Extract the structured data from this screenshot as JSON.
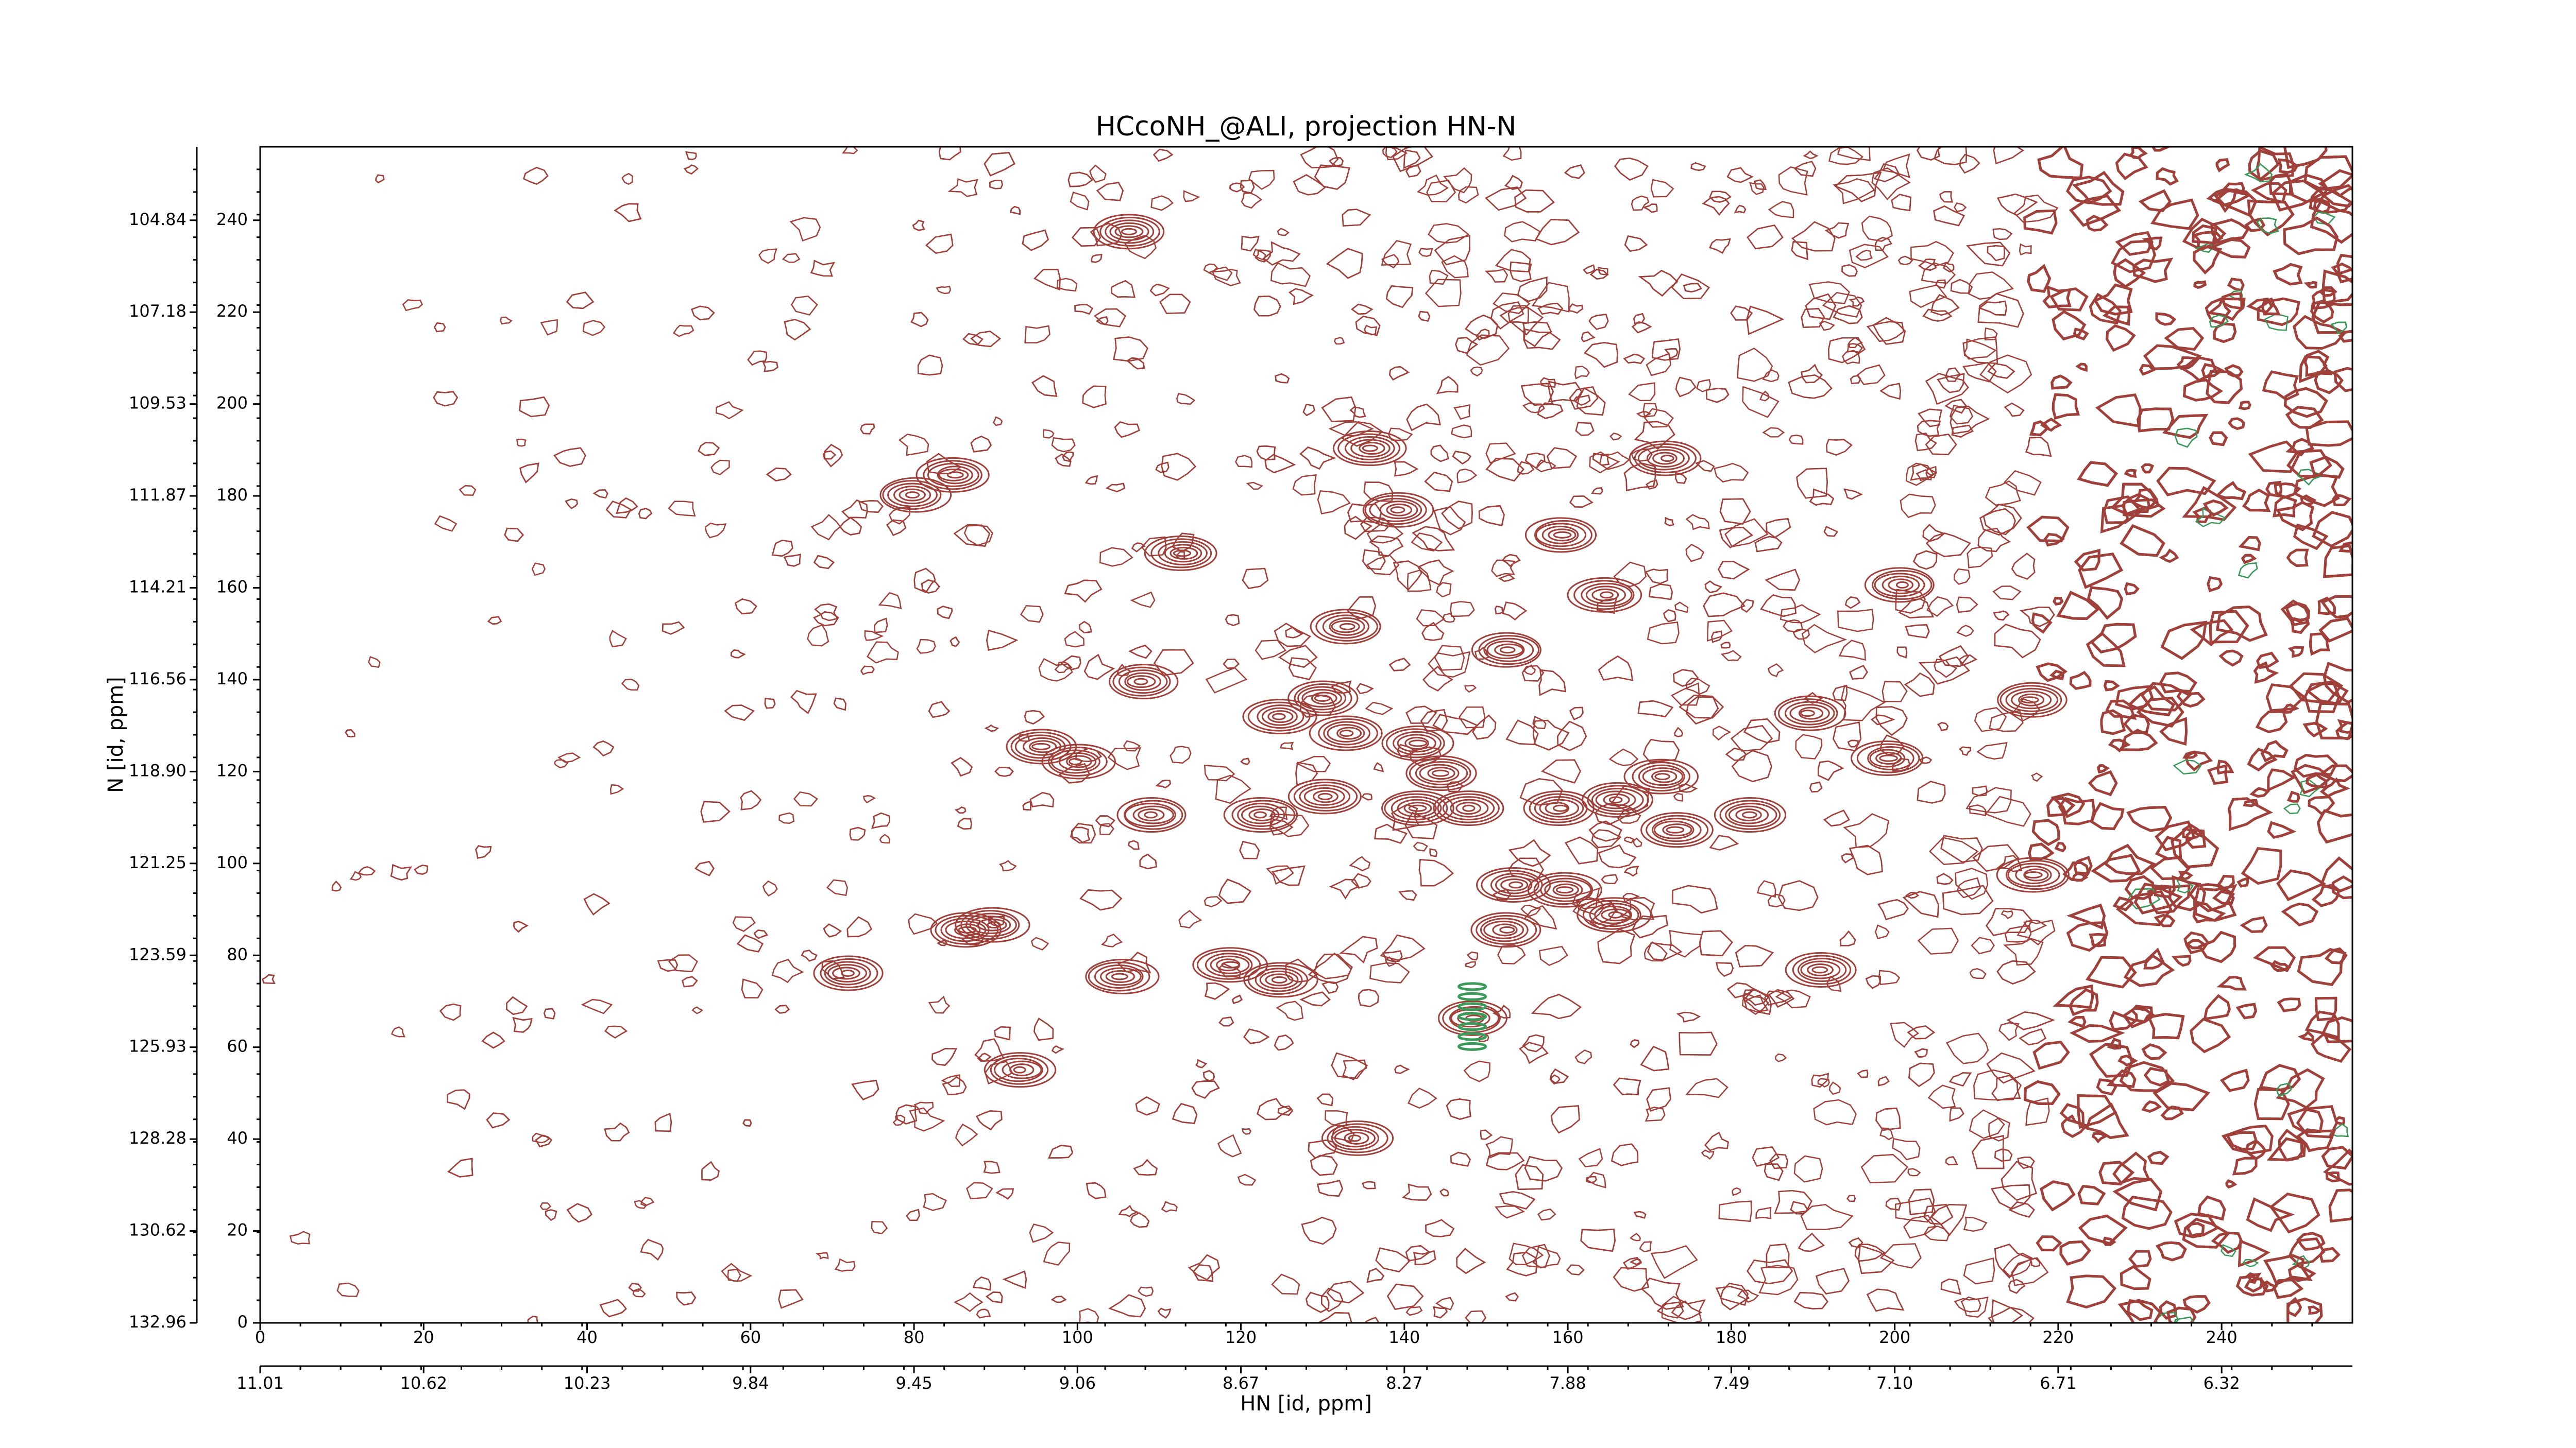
{
  "chart_data": {
    "type": "contour",
    "title": "HCcoNH_@ALI, projection HN-N",
    "xlabel": "HN [id, ppm]",
    "ylabel": "N [id, ppm]",
    "xlim": [
      0,
      256
    ],
    "ylim": [
      0,
      256
    ],
    "xticks": [
      0,
      20,
      40,
      60,
      80,
      100,
      120,
      140,
      160,
      180,
      200,
      220,
      240
    ],
    "yticks": [
      0,
      20,
      40,
      60,
      80,
      100,
      120,
      140,
      160,
      180,
      200,
      220,
      240
    ],
    "x2ticks": [
      {
        "value": 0,
        "label": "11.01"
      },
      {
        "value": 20,
        "label": "10.62"
      },
      {
        "value": 40,
        "label": "10.23"
      },
      {
        "value": 60,
        "label": "9.84"
      },
      {
        "value": 80,
        "label": "9.45"
      },
      {
        "value": 100,
        "label": "9.06"
      },
      {
        "value": 120,
        "label": "8.67"
      },
      {
        "value": 140,
        "label": "8.27"
      },
      {
        "value": 160,
        "label": "7.88"
      },
      {
        "value": 180,
        "label": "7.49"
      },
      {
        "value": 200,
        "label": "7.10"
      },
      {
        "value": 220,
        "label": "6.71"
      },
      {
        "value": 240,
        "label": "6.32"
      }
    ],
    "y2ticks": [
      {
        "value": 0,
        "label": "132.96"
      },
      {
        "value": 20,
        "label": "130.62"
      },
      {
        "value": 40,
        "label": "128.28"
      },
      {
        "value": 60,
        "label": "125.93"
      },
      {
        "value": 80,
        "label": "123.59"
      },
      {
        "value": 100,
        "label": "121.25"
      },
      {
        "value": 120,
        "label": "118.90"
      },
      {
        "value": 140,
        "label": "116.56"
      },
      {
        "value": 160,
        "label": "114.21"
      },
      {
        "value": 180,
        "label": "111.87"
      },
      {
        "value": 200,
        "label": "109.53"
      },
      {
        "value": 220,
        "label": "107.18"
      },
      {
        "value": 240,
        "label": "104.84"
      }
    ],
    "positive_color": "#a0403a",
    "negative_color": "#3a9a5a"
  }
}
